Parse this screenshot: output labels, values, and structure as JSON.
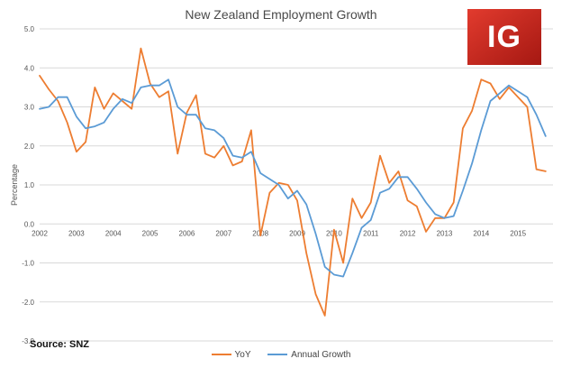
{
  "chart_data": {
    "type": "line",
    "title": "New Zealand Employment Growth",
    "ylabel": "Percentage",
    "xlabel": "",
    "source": "Source: SNZ",
    "logo_text": "IG",
    "ylim": [
      -3.0,
      5.0
    ],
    "xlim": [
      2002,
      2015.95
    ],
    "y_ticks": [
      "5.0",
      "4.0",
      "3.0",
      "2.0",
      "1.0",
      "0.0",
      "-1.0",
      "-2.0",
      "-3.0"
    ],
    "x_ticks": [
      "2002",
      "2003",
      "2004",
      "2005",
      "2006",
      "2007",
      "2008",
      "2009",
      "2010",
      "2011",
      "2012",
      "2013",
      "2014",
      "2015"
    ],
    "grid": "horizontal",
    "legend_position": "bottom",
    "series": [
      {
        "name": "YoY",
        "color": "#ED7D31",
        "points": [
          [
            2002.0,
            3.8
          ],
          [
            2002.25,
            3.45
          ],
          [
            2002.5,
            3.15
          ],
          [
            2002.75,
            2.6
          ],
          [
            2003.0,
            1.85
          ],
          [
            2003.25,
            2.1
          ],
          [
            2003.5,
            3.5
          ],
          [
            2003.75,
            2.95
          ],
          [
            2004.0,
            3.35
          ],
          [
            2004.25,
            3.15
          ],
          [
            2004.5,
            2.95
          ],
          [
            2004.75,
            4.5
          ],
          [
            2005.0,
            3.6
          ],
          [
            2005.25,
            3.25
          ],
          [
            2005.5,
            3.4
          ],
          [
            2005.75,
            1.8
          ],
          [
            2006.0,
            2.85
          ],
          [
            2006.25,
            3.3
          ],
          [
            2006.5,
            1.8
          ],
          [
            2006.75,
            1.7
          ],
          [
            2007.0,
            2.0
          ],
          [
            2007.25,
            1.5
          ],
          [
            2007.5,
            1.6
          ],
          [
            2007.75,
            2.4
          ],
          [
            2008.0,
            -0.3
          ],
          [
            2008.25,
            0.8
          ],
          [
            2008.5,
            1.05
          ],
          [
            2008.75,
            1.0
          ],
          [
            2009.0,
            0.6
          ],
          [
            2009.25,
            -0.75
          ],
          [
            2009.5,
            -1.8
          ],
          [
            2009.75,
            -2.35
          ],
          [
            2010.0,
            -0.15
          ],
          [
            2010.25,
            -1.0
          ],
          [
            2010.5,
            0.65
          ],
          [
            2010.75,
            0.15
          ],
          [
            2011.0,
            0.55
          ],
          [
            2011.25,
            1.75
          ],
          [
            2011.5,
            1.05
          ],
          [
            2011.75,
            1.35
          ],
          [
            2012.0,
            0.6
          ],
          [
            2012.25,
            0.45
          ],
          [
            2012.5,
            -0.2
          ],
          [
            2012.75,
            0.15
          ],
          [
            2013.0,
            0.15
          ],
          [
            2013.25,
            0.55
          ],
          [
            2013.5,
            2.45
          ],
          [
            2013.75,
            2.9
          ],
          [
            2014.0,
            3.7
          ],
          [
            2014.25,
            3.6
          ],
          [
            2014.5,
            3.2
          ],
          [
            2014.75,
            3.5
          ],
          [
            2015.0,
            3.25
          ],
          [
            2015.25,
            3.0
          ],
          [
            2015.5,
            1.4
          ],
          [
            2015.75,
            1.35
          ]
        ]
      },
      {
        "name": "Annual Growth",
        "color": "#5B9BD5",
        "points": [
          [
            2002.0,
            2.95
          ],
          [
            2002.25,
            3.0
          ],
          [
            2002.5,
            3.25
          ],
          [
            2002.75,
            3.25
          ],
          [
            2003.0,
            2.75
          ],
          [
            2003.25,
            2.45
          ],
          [
            2003.5,
            2.5
          ],
          [
            2003.75,
            2.6
          ],
          [
            2004.0,
            2.95
          ],
          [
            2004.25,
            3.2
          ],
          [
            2004.5,
            3.1
          ],
          [
            2004.75,
            3.5
          ],
          [
            2005.0,
            3.55
          ],
          [
            2005.25,
            3.55
          ],
          [
            2005.5,
            3.7
          ],
          [
            2005.75,
            3.0
          ],
          [
            2006.0,
            2.8
          ],
          [
            2006.25,
            2.8
          ],
          [
            2006.5,
            2.45
          ],
          [
            2006.75,
            2.4
          ],
          [
            2007.0,
            2.2
          ],
          [
            2007.25,
            1.75
          ],
          [
            2007.5,
            1.7
          ],
          [
            2007.75,
            1.85
          ],
          [
            2008.0,
            1.3
          ],
          [
            2008.25,
            1.15
          ],
          [
            2008.5,
            1.0
          ],
          [
            2008.75,
            0.65
          ],
          [
            2009.0,
            0.85
          ],
          [
            2009.25,
            0.5
          ],
          [
            2009.5,
            -0.25
          ],
          [
            2009.75,
            -1.1
          ],
          [
            2010.0,
            -1.3
          ],
          [
            2010.25,
            -1.35
          ],
          [
            2010.5,
            -0.75
          ],
          [
            2010.75,
            -0.1
          ],
          [
            2011.0,
            0.1
          ],
          [
            2011.25,
            0.8
          ],
          [
            2011.5,
            0.9
          ],
          [
            2011.75,
            1.2
          ],
          [
            2012.0,
            1.2
          ],
          [
            2012.25,
            0.9
          ],
          [
            2012.5,
            0.55
          ],
          [
            2012.75,
            0.25
          ],
          [
            2013.0,
            0.15
          ],
          [
            2013.25,
            0.2
          ],
          [
            2013.5,
            0.85
          ],
          [
            2013.75,
            1.55
          ],
          [
            2014.0,
            2.4
          ],
          [
            2014.25,
            3.15
          ],
          [
            2014.5,
            3.35
          ],
          [
            2014.75,
            3.55
          ],
          [
            2015.0,
            3.4
          ],
          [
            2015.25,
            3.25
          ],
          [
            2015.5,
            2.8
          ],
          [
            2015.75,
            2.25
          ]
        ]
      }
    ]
  }
}
